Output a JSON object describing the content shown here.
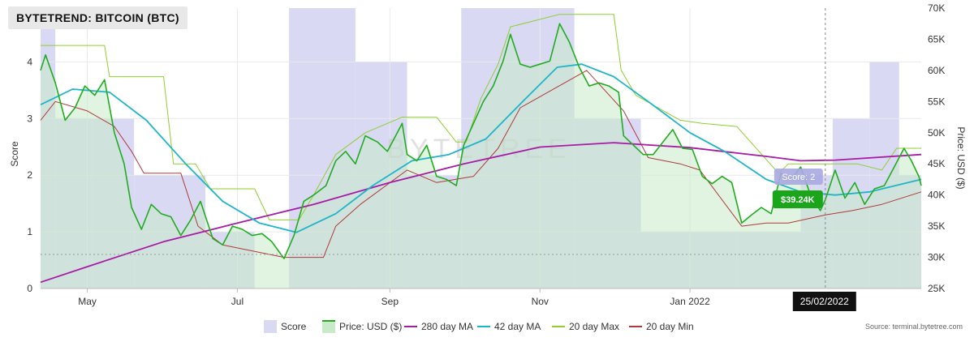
{
  "title": "BYTETREND: BITCOIN (BTC)",
  "source_label": "Source: terminal.bytetree.com",
  "watermark": "BYTETREE",
  "tooltip": {
    "date": "25/02/2022",
    "price": "$39.24K",
    "score": "Score: 2"
  },
  "colors": {
    "score_band": "#d9d9f3",
    "price": "#1fad1f",
    "price_fill": "#c9eac9",
    "ma280": "#a61ca6",
    "ma42": "#1fb5c8",
    "max20": "#8fcf2e",
    "min20": "#b03a3a",
    "tooltip_price_bg": "#1aa51a",
    "tooltip_score_bg": "#a9a9e0",
    "tooltip_date_bg": "#111111"
  },
  "chart_data": {
    "type": "line",
    "x_tick_labels": [
      "May",
      "Jul",
      "Sep",
      "Nov",
      "Jan 2022"
    ],
    "x_tick_dates": [
      "2021-05-01",
      "2021-07-01",
      "2021-09-01",
      "2021-11-01",
      "2022-01-01"
    ],
    "x_range": [
      "2021-04-12",
      "2022-04-05"
    ],
    "left_axis": {
      "label": "Score",
      "ticks": [
        "0",
        "1",
        "2",
        "3",
        "4"
      ],
      "range": [
        0,
        4.95
      ]
    },
    "right_axis": {
      "label": "Price: USD ($)",
      "ticks": [
        "25K",
        "30K",
        "35K",
        "40K",
        "45K",
        "50K",
        "55K",
        "60K",
        "65K",
        "70K"
      ],
      "range": [
        25000,
        70000
      ]
    },
    "legend": [
      "Score",
      "Price: USD ($)",
      "280 day MA",
      "42 day MA",
      "20 day Max",
      "20 day Min"
    ],
    "legend_position": "bottom",
    "score_segments": [
      {
        "start": "2021-04-12",
        "end": "2021-04-18",
        "score": 5
      },
      {
        "start": "2021-04-18",
        "end": "2021-05-03",
        "score": 3
      },
      {
        "start": "2021-05-03",
        "end": "2021-05-20",
        "score": 3
      },
      {
        "start": "2021-05-20",
        "end": "2021-06-18",
        "score": 2
      },
      {
        "start": "2021-06-18",
        "end": "2021-07-08",
        "score": 1
      },
      {
        "start": "2021-07-08",
        "end": "2021-07-22",
        "score": 0
      },
      {
        "start": "2021-07-22",
        "end": "2021-08-18",
        "score": 5
      },
      {
        "start": "2021-08-18",
        "end": "2021-09-08",
        "score": 4
      },
      {
        "start": "2021-09-08",
        "end": "2021-09-30",
        "score": 2
      },
      {
        "start": "2021-09-30",
        "end": "2021-11-15",
        "score": 5
      },
      {
        "start": "2021-11-15",
        "end": "2021-12-12",
        "score": 3
      },
      {
        "start": "2021-12-12",
        "end": "2022-01-20",
        "score": 1
      },
      {
        "start": "2022-01-20",
        "end": "2022-02-15",
        "score": 1
      },
      {
        "start": "2022-02-15",
        "end": "2022-02-28",
        "score": 2
      },
      {
        "start": "2022-02-28",
        "end": "2022-03-15",
        "score": 3
      },
      {
        "start": "2022-03-15",
        "end": "2022-03-27",
        "score": 4
      },
      {
        "start": "2022-03-27",
        "end": "2022-04-05",
        "score": 2
      }
    ],
    "series": [
      {
        "name": "Price: USD ($)",
        "points": [
          [
            "2021-04-12",
            60000
          ],
          [
            "2021-04-14",
            62500
          ],
          [
            "2021-04-18",
            58000
          ],
          [
            "2021-04-22",
            52000
          ],
          [
            "2021-04-26",
            54000
          ],
          [
            "2021-04-30",
            57500
          ],
          [
            "2021-05-04",
            56000
          ],
          [
            "2021-05-08",
            58500
          ],
          [
            "2021-05-12",
            50000
          ],
          [
            "2021-05-16",
            45000
          ],
          [
            "2021-05-19",
            38000
          ],
          [
            "2021-05-23",
            34500
          ],
          [
            "2021-05-27",
            38500
          ],
          [
            "2021-05-31",
            37000
          ],
          [
            "2021-06-04",
            36500
          ],
          [
            "2021-06-08",
            33500
          ],
          [
            "2021-06-12",
            36000
          ],
          [
            "2021-06-16",
            39000
          ],
          [
            "2021-06-21",
            33000
          ],
          [
            "2021-06-25",
            32000
          ],
          [
            "2021-06-29",
            35000
          ],
          [
            "2021-07-03",
            34500
          ],
          [
            "2021-07-07",
            33500
          ],
          [
            "2021-07-11",
            33800
          ],
          [
            "2021-07-15",
            32500
          ],
          [
            "2021-07-20",
            29800
          ],
          [
            "2021-07-24",
            33500
          ],
          [
            "2021-07-28",
            39000
          ],
          [
            "2021-08-01",
            40000
          ],
          [
            "2021-08-06",
            41500
          ],
          [
            "2021-08-10",
            45500
          ],
          [
            "2021-08-14",
            47000
          ],
          [
            "2021-08-18",
            45000
          ],
          [
            "2021-08-22",
            49500
          ],
          [
            "2021-08-27",
            48500
          ],
          [
            "2021-08-31",
            47000
          ],
          [
            "2021-09-04",
            50000
          ],
          [
            "2021-09-06",
            51500
          ],
          [
            "2021-09-08",
            46500
          ],
          [
            "2021-09-12",
            45500
          ],
          [
            "2021-09-16",
            48000
          ],
          [
            "2021-09-20",
            43000
          ],
          [
            "2021-09-24",
            42500
          ],
          [
            "2021-09-28",
            41500
          ],
          [
            "2021-10-01",
            48000
          ],
          [
            "2021-10-05",
            51500
          ],
          [
            "2021-10-09",
            55000
          ],
          [
            "2021-10-13",
            57500
          ],
          [
            "2021-10-17",
            61500
          ],
          [
            "2021-10-20",
            65800
          ],
          [
            "2021-10-24",
            61000
          ],
          [
            "2021-10-28",
            60500
          ],
          [
            "2021-11-01",
            61000
          ],
          [
            "2021-11-05",
            61500
          ],
          [
            "2021-11-09",
            67500
          ],
          [
            "2021-11-13",
            64500
          ],
          [
            "2021-11-17",
            60500
          ],
          [
            "2021-11-21",
            57500
          ],
          [
            "2021-11-25",
            58000
          ],
          [
            "2021-11-29",
            57500
          ],
          [
            "2021-12-03",
            56500
          ],
          [
            "2021-12-05",
            49500
          ],
          [
            "2021-12-09",
            48000
          ],
          [
            "2021-12-13",
            46500
          ],
          [
            "2021-12-17",
            46500
          ],
          [
            "2021-12-21",
            48500
          ],
          [
            "2021-12-25",
            50500
          ],
          [
            "2021-12-29",
            47500
          ],
          [
            "2022-01-02",
            47300
          ],
          [
            "2022-01-06",
            43000
          ],
          [
            "2022-01-10",
            41800
          ],
          [
            "2022-01-14",
            43000
          ],
          [
            "2022-01-18",
            42000
          ],
          [
            "2022-01-22",
            35500
          ],
          [
            "2022-01-26",
            36800
          ],
          [
            "2022-01-30",
            38000
          ],
          [
            "2022-02-03",
            37000
          ],
          [
            "2022-02-07",
            43500
          ],
          [
            "2022-02-11",
            42500
          ],
          [
            "2022-02-15",
            44500
          ],
          [
            "2022-02-19",
            40000
          ],
          [
            "2022-02-23",
            37500
          ],
          [
            "2022-02-25",
            39240
          ],
          [
            "2022-03-01",
            44000
          ],
          [
            "2022-03-05",
            39500
          ],
          [
            "2022-03-09",
            42000
          ],
          [
            "2022-03-13",
            38500
          ],
          [
            "2022-03-17",
            41000
          ],
          [
            "2022-03-21",
            41500
          ],
          [
            "2022-03-25",
            44500
          ],
          [
            "2022-03-29",
            47500
          ],
          [
            "2022-04-01",
            45500
          ],
          [
            "2022-04-04",
            43000
          ],
          [
            "2022-04-05",
            41500
          ]
        ]
      },
      {
        "name": "280 day MA",
        "points": [
          [
            "2021-04-12",
            26000
          ],
          [
            "2021-05-01",
            28500
          ],
          [
            "2021-06-01",
            32500
          ],
          [
            "2021-07-01",
            35500
          ],
          [
            "2021-08-01",
            38500
          ],
          [
            "2021-09-01",
            42000
          ],
          [
            "2021-10-01",
            45000
          ],
          [
            "2021-11-01",
            47700
          ],
          [
            "2021-12-01",
            48400
          ],
          [
            "2022-01-01",
            47600
          ],
          [
            "2022-02-01",
            46200
          ],
          [
            "2022-02-15",
            45500
          ],
          [
            "2022-03-01",
            45600
          ],
          [
            "2022-04-05",
            46500
          ]
        ]
      },
      {
        "name": "42 day MA",
        "points": [
          [
            "2021-04-12",
            54500
          ],
          [
            "2021-04-25",
            57000
          ],
          [
            "2021-05-10",
            56500
          ],
          [
            "2021-05-25",
            52000
          ],
          [
            "2021-06-10",
            45000
          ],
          [
            "2021-06-25",
            39000
          ],
          [
            "2021-07-10",
            35500
          ],
          [
            "2021-07-25",
            34000
          ],
          [
            "2021-08-10",
            37000
          ],
          [
            "2021-08-25",
            41500
          ],
          [
            "2021-09-10",
            45500
          ],
          [
            "2021-09-25",
            46500
          ],
          [
            "2021-10-10",
            49000
          ],
          [
            "2021-10-25",
            55000
          ],
          [
            "2021-11-08",
            60500
          ],
          [
            "2021-11-18",
            61000
          ],
          [
            "2021-12-01",
            59000
          ],
          [
            "2021-12-15",
            55000
          ],
          [
            "2022-01-01",
            50000
          ],
          [
            "2022-01-15",
            47000
          ],
          [
            "2022-02-01",
            42500
          ],
          [
            "2022-02-15",
            40500
          ],
          [
            "2022-03-01",
            40000
          ],
          [
            "2022-03-15",
            40500
          ],
          [
            "2022-04-05",
            42500
          ]
        ]
      },
      {
        "name": "20 day Max",
        "points": [
          [
            "2021-04-12",
            64000
          ],
          [
            "2021-05-08",
            64000
          ],
          [
            "2021-05-10",
            59000
          ],
          [
            "2021-05-20",
            59000
          ],
          [
            "2021-06-01",
            59000
          ],
          [
            "2021-06-05",
            45000
          ],
          [
            "2021-06-14",
            45000
          ],
          [
            "2021-06-20",
            41000
          ],
          [
            "2021-07-08",
            41000
          ],
          [
            "2021-07-14",
            36000
          ],
          [
            "2021-07-26",
            36000
          ],
          [
            "2021-08-01",
            40000
          ],
          [
            "2021-08-10",
            46500
          ],
          [
            "2021-08-22",
            50000
          ],
          [
            "2021-09-06",
            52500
          ],
          [
            "2021-09-20",
            52500
          ],
          [
            "2021-09-28",
            48500
          ],
          [
            "2021-10-02",
            48500
          ],
          [
            "2021-10-08",
            55500
          ],
          [
            "2021-10-15",
            61000
          ],
          [
            "2021-10-20",
            67000
          ],
          [
            "2021-11-09",
            69000
          ],
          [
            "2021-12-01",
            69000
          ],
          [
            "2021-12-04",
            60000
          ],
          [
            "2021-12-10",
            56000
          ],
          [
            "2021-12-28",
            52000
          ],
          [
            "2022-01-06",
            51500
          ],
          [
            "2022-01-20",
            51000
          ],
          [
            "2022-02-06",
            43500
          ],
          [
            "2022-02-10",
            45000
          ],
          [
            "2022-03-10",
            45000
          ],
          [
            "2022-03-20",
            44000
          ],
          [
            "2022-03-26",
            47500
          ],
          [
            "2022-04-05",
            47500
          ]
        ]
      },
      {
        "name": "20 day Min",
        "points": [
          [
            "2021-04-12",
            52000
          ],
          [
            "2021-04-18",
            55000
          ],
          [
            "2021-05-01",
            53500
          ],
          [
            "2021-05-12",
            51000
          ],
          [
            "2021-05-19",
            47000
          ],
          [
            "2021-05-24",
            43500
          ],
          [
            "2021-06-08",
            43500
          ],
          [
            "2021-06-15",
            35000
          ],
          [
            "2021-06-25",
            32000
          ],
          [
            "2021-07-20",
            30000
          ],
          [
            "2021-08-05",
            30000
          ],
          [
            "2021-08-10",
            35000
          ],
          [
            "2021-08-20",
            38500
          ],
          [
            "2021-09-08",
            44000
          ],
          [
            "2021-09-20",
            42000
          ],
          [
            "2021-10-05",
            43000
          ],
          [
            "2021-10-15",
            47500
          ],
          [
            "2021-10-24",
            54000
          ],
          [
            "2021-11-20",
            60000
          ],
          [
            "2021-12-05",
            53500
          ],
          [
            "2021-12-15",
            46000
          ],
          [
            "2021-12-28",
            45000
          ],
          [
            "2022-01-05",
            44000
          ],
          [
            "2022-01-22",
            35000
          ],
          [
            "2022-02-01",
            35500
          ],
          [
            "2022-02-10",
            35500
          ],
          [
            "2022-02-25",
            36800
          ],
          [
            "2022-03-08",
            37500
          ],
          [
            "2022-03-20",
            38500
          ],
          [
            "2022-04-05",
            40500
          ]
        ]
      }
    ],
    "grid": true
  }
}
